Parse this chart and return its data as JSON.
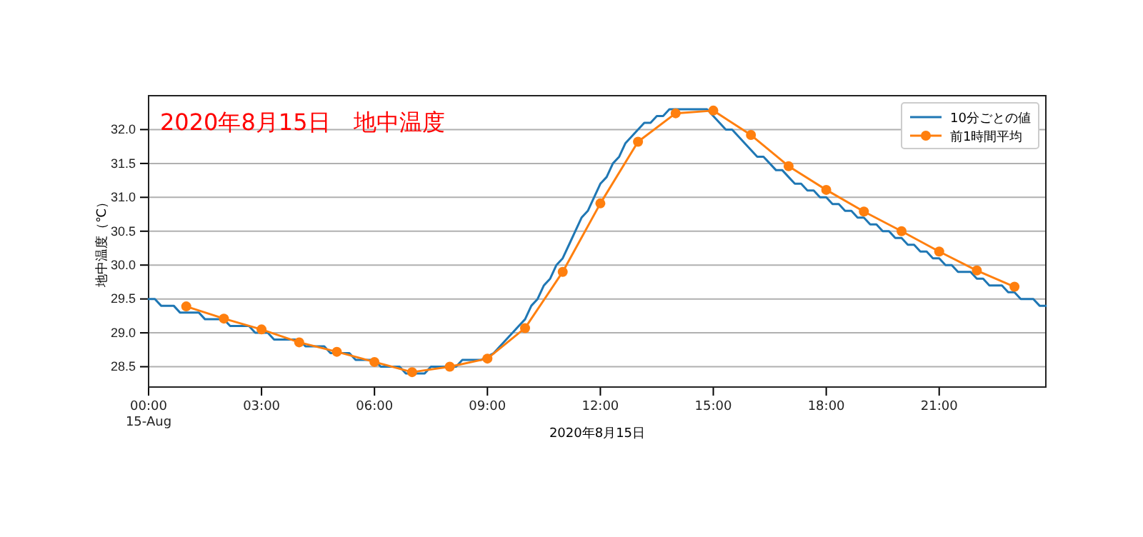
{
  "chart_data": {
    "type": "line",
    "title": "2020年8月15日　地中温度",
    "xlabel": "2020年8月15日",
    "ylabel": "地中温度（℃）",
    "xlim": [
      0,
      23.833
    ],
    "xticks": [
      {
        "value": 0,
        "label": "00:00\n15-Aug"
      },
      {
        "value": 3,
        "label": "03:00"
      },
      {
        "value": 6,
        "label": "06:00"
      },
      {
        "value": 9,
        "label": "09:00"
      },
      {
        "value": 12,
        "label": "12:00"
      },
      {
        "value": 15,
        "label": "15:00"
      },
      {
        "value": 18,
        "label": "18:00"
      },
      {
        "value": 21,
        "label": "21:00"
      }
    ],
    "ylim": [
      28.2,
      32.5
    ],
    "yticks": [
      {
        "value": 28.5,
        "label": "28.5"
      },
      {
        "value": 29,
        "label": "29.0"
      },
      {
        "value": 29.5,
        "label": "29.5"
      },
      {
        "value": 30,
        "label": "30.0"
      },
      {
        "value": 30.5,
        "label": "30.5"
      },
      {
        "value": 31,
        "label": "31.0"
      },
      {
        "value": 31.5,
        "label": "31.5"
      },
      {
        "value": 32,
        "label": "32.0"
      }
    ],
    "grid": "y",
    "legend": "top right",
    "line_style": "solid",
    "series": [
      {
        "name": "10分ごとの値",
        "color": "#1f77b4",
        "marker": "none",
        "x": [
          0,
          0.167,
          0.333,
          0.5,
          0.667,
          0.833,
          1,
          1.167,
          1.333,
          1.5,
          1.667,
          1.833,
          2,
          2.167,
          2.333,
          2.5,
          2.667,
          2.833,
          3,
          3.167,
          3.333,
          3.5,
          3.667,
          3.833,
          4,
          4.167,
          4.333,
          4.5,
          4.667,
          4.833,
          5,
          5.167,
          5.333,
          5.5,
          5.667,
          5.833,
          6,
          6.167,
          6.333,
          6.5,
          6.667,
          6.833,
          7,
          7.167,
          7.333,
          7.5,
          7.667,
          7.833,
          8,
          8.167,
          8.333,
          8.5,
          8.667,
          8.833,
          9,
          9.167,
          9.333,
          9.5,
          9.667,
          9.833,
          10,
          10.167,
          10.333,
          10.5,
          10.667,
          10.833,
          11,
          11.167,
          11.333,
          11.5,
          11.667,
          11.833,
          12,
          12.167,
          12.333,
          12.5,
          12.667,
          12.833,
          13,
          13.167,
          13.333,
          13.5,
          13.667,
          13.833,
          14,
          14.167,
          14.333,
          14.5,
          14.667,
          14.833,
          15,
          15.167,
          15.333,
          15.5,
          15.667,
          15.833,
          16,
          16.167,
          16.333,
          16.5,
          16.667,
          16.833,
          17,
          17.167,
          17.333,
          17.5,
          17.667,
          17.833,
          18,
          18.167,
          18.333,
          18.5,
          18.667,
          18.833,
          19,
          19.167,
          19.333,
          19.5,
          19.667,
          19.833,
          20,
          20.167,
          20.333,
          20.5,
          20.667,
          20.833,
          21,
          21.167,
          21.333,
          21.5,
          21.667,
          21.833,
          22,
          22.167,
          22.333,
          22.5,
          22.667,
          22.833,
          23,
          23.167,
          23.333,
          23.5,
          23.667,
          23.833
        ],
        "values": [
          29.5,
          29.5,
          29.4,
          29.4,
          29.4,
          29.3,
          29.3,
          29.3,
          29.3,
          29.2,
          29.2,
          29.2,
          29.2,
          29.1,
          29.1,
          29.1,
          29.1,
          29.0,
          29.0,
          29.0,
          28.9,
          28.9,
          28.9,
          28.9,
          28.9,
          28.8,
          28.8,
          28.8,
          28.8,
          28.7,
          28.7,
          28.7,
          28.7,
          28.6,
          28.6,
          28.6,
          28.6,
          28.5,
          28.5,
          28.5,
          28.5,
          28.4,
          28.4,
          28.4,
          28.4,
          28.5,
          28.5,
          28.5,
          28.5,
          28.5,
          28.6,
          28.6,
          28.6,
          28.6,
          null,
          28.7,
          28.8,
          28.9,
          29.0,
          29.1,
          29.2,
          29.4,
          29.5,
          29.7,
          29.8,
          30.0,
          30.1,
          30.3,
          30.5,
          30.7,
          30.8,
          31.0,
          31.2,
          31.3,
          31.5,
          31.6,
          31.8,
          31.9,
          32.0,
          32.1,
          32.1,
          32.2,
          32.2,
          32.3,
          32.3,
          32.3,
          32.3,
          32.3,
          32.3,
          32.3,
          32.2,
          32.1,
          32.0,
          32.0,
          31.9,
          31.8,
          31.7,
          31.6,
          31.6,
          31.5,
          31.4,
          31.4,
          31.3,
          31.2,
          31.2,
          31.1,
          31.1,
          31.0,
          31.0,
          30.9,
          30.9,
          30.8,
          30.8,
          30.7,
          30.7,
          30.6,
          30.6,
          30.5,
          30.5,
          30.4,
          30.4,
          30.3,
          30.3,
          30.2,
          30.2,
          30.1,
          30.1,
          30.0,
          30.0,
          29.9,
          29.9,
          29.9,
          29.8,
          29.8,
          29.7,
          29.7,
          29.7,
          29.6,
          29.6,
          29.5,
          29.5,
          29.5,
          29.4,
          29.4
        ]
      },
      {
        "name": "前1時間平均",
        "color": "#ff7f0e",
        "marker": "circle",
        "x": [
          1,
          2,
          3,
          4,
          5,
          6,
          7,
          8,
          9,
          10,
          11,
          12,
          13,
          14,
          15,
          16,
          17,
          18,
          19,
          20,
          21,
          22,
          23
        ],
        "values": [
          29.39,
          29.21,
          29.05,
          28.86,
          28.72,
          28.57,
          28.42,
          28.5,
          28.62,
          29.07,
          29.9,
          30.91,
          31.82,
          32.24,
          32.28,
          31.92,
          31.46,
          31.11,
          30.79,
          30.5,
          30.2,
          29.92,
          29.68
        ]
      }
    ]
  }
}
